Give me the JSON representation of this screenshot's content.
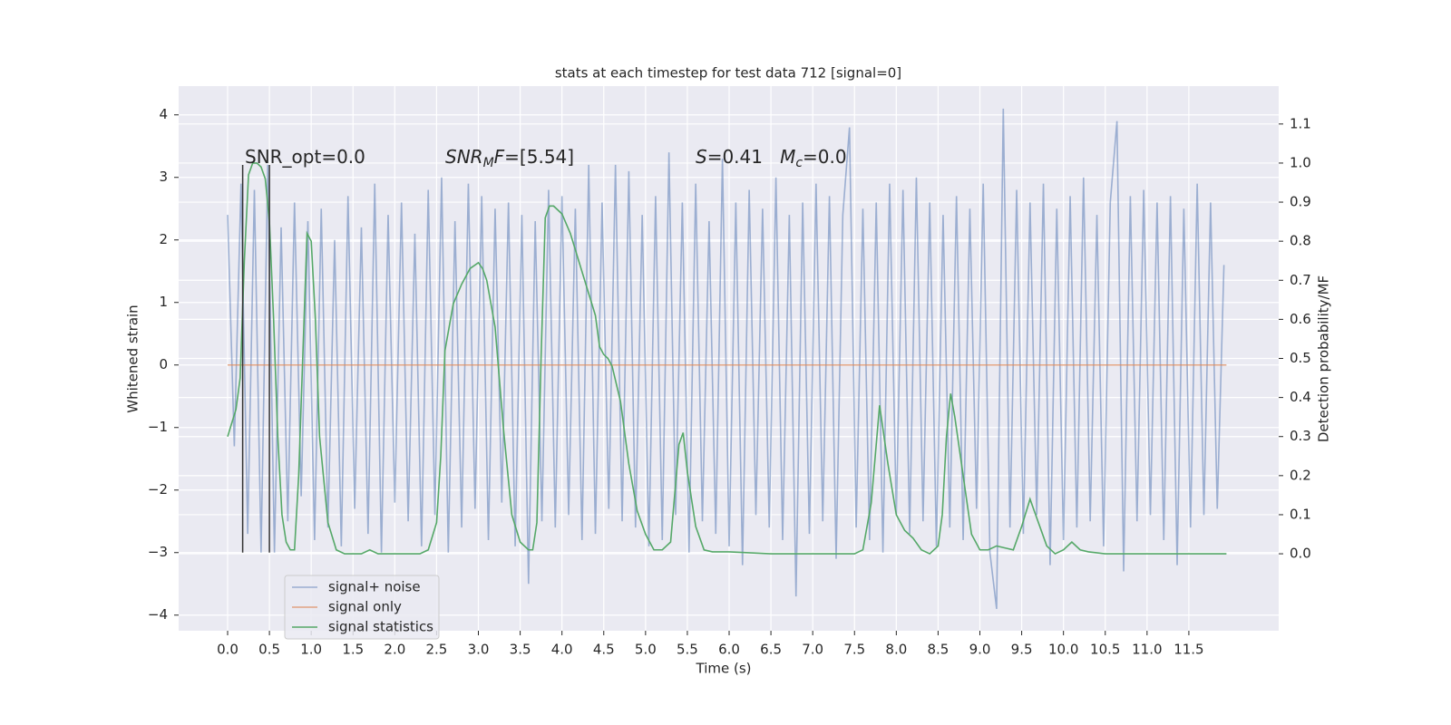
{
  "chart_data": {
    "type": "line",
    "title": "stats at each timestep for test data 712 [signal=0]",
    "xlabel": "Time (s)",
    "ylabel": "Whitened strain",
    "y2label": "Detection probability/MF",
    "xlim": [
      -0.586,
      12.575
    ],
    "ylim": [
      -4.25,
      4.46
    ],
    "y2lim": [
      -0.197,
      1.197
    ],
    "grid": true,
    "xticks": [
      {
        "value": 0,
        "label": "0.0"
      },
      0.5,
      {
        "value": 1,
        "label": "1.0"
      },
      1.5,
      {
        "value": 2,
        "label": "2.0"
      },
      2.5,
      {
        "value": 3,
        "label": "3.0"
      },
      3.5,
      {
        "value": 4,
        "label": "4.0"
      },
      4.5,
      {
        "value": 5,
        "label": "5.0"
      },
      5.5,
      {
        "value": 6,
        "label": "6.0"
      },
      6.5,
      {
        "value": 7,
        "label": "7.0"
      },
      7.5,
      {
        "value": 8,
        "label": "8.0"
      },
      8.5,
      {
        "value": 9,
        "label": "9.0"
      },
      9.5,
      {
        "value": 10,
        "label": "10.0"
      },
      10.5,
      {
        "value": 11,
        "label": "11.0"
      },
      11.5
    ],
    "yticks": [
      {
        "value": -4,
        "label": "−4"
      },
      {
        "value": -3,
        "label": "−3"
      },
      {
        "value": -2,
        "label": "−2"
      },
      {
        "value": -1,
        "label": "−1"
      },
      0,
      1,
      2,
      3,
      4
    ],
    "y2ticks": [
      {
        "value": 0,
        "label": "0.0"
      },
      0.1,
      0.2,
      0.3,
      0.4,
      0.5,
      0.6,
      0.7,
      0.8,
      0.9,
      {
        "value": 1,
        "label": "1.0"
      },
      1.1
    ],
    "series": [
      {
        "name": "signal+ noise",
        "color": "#4c72b0",
        "opacity": 0.5,
        "x": [
          0,
          0.08,
          0.16,
          0.24,
          0.32,
          0.4,
          0.48,
          0.56,
          0.64,
          0.72,
          0.8,
          0.88,
          0.96,
          1.04,
          1.12,
          1.2,
          1.28,
          1.36,
          1.44,
          1.52,
          1.6,
          1.68,
          1.76,
          1.84,
          1.92,
          2,
          2.08,
          2.16,
          2.24,
          2.32,
          2.4,
          2.48,
          2.56,
          2.64,
          2.72,
          2.8,
          2.88,
          2.96,
          3.04,
          3.12,
          3.2,
          3.28,
          3.36,
          3.44,
          3.52,
          3.6,
          3.68,
          3.76,
          3.84,
          3.92,
          4,
          4.08,
          4.16,
          4.24,
          4.32,
          4.4,
          4.48,
          4.56,
          4.64,
          4.72,
          4.8,
          4.88,
          4.96,
          5.04,
          5.12,
          5.2,
          5.28,
          5.36,
          5.44,
          5.52,
          5.6,
          5.68,
          5.76,
          5.84,
          5.92,
          6,
          6.08,
          6.16,
          6.24,
          6.32,
          6.4,
          6.48,
          6.56,
          6.64,
          6.72,
          6.8,
          6.88,
          6.96,
          7.04,
          7.12,
          7.2,
          7.28,
          7.36,
          7.44,
          7.52,
          7.6,
          7.68,
          7.76,
          7.84,
          7.92,
          8,
          8.08,
          8.16,
          8.24,
          8.32,
          8.4,
          8.48,
          8.56,
          8.64,
          8.72,
          8.8,
          8.88,
          8.96,
          9.04,
          9.12,
          9.2,
          9.28,
          9.36,
          9.44,
          9.52,
          9.6,
          9.68,
          9.76,
          9.84,
          9.92,
          10,
          10.08,
          10.16,
          10.24,
          10.32,
          10.4,
          10.48,
          10.56,
          10.64,
          10.72,
          10.8,
          10.88,
          10.96,
          11.04,
          11.12,
          11.2,
          11.28,
          11.36,
          11.44,
          11.52,
          11.6,
          11.68,
          11.76,
          11.84,
          11.92
        ],
        "values": [
          2.4,
          -1.3,
          2.9,
          -2.7,
          2.8,
          -3.0,
          3.2,
          -3.0,
          2.2,
          -2.5,
          2.6,
          -2.1,
          2.3,
          -2.8,
          2.5,
          -2.6,
          2.0,
          -2.9,
          2.7,
          -2.3,
          2.2,
          -2.7,
          2.9,
          -3.0,
          2.4,
          -2.2,
          2.6,
          -2.5,
          2.1,
          -2.9,
          2.8,
          -2.4,
          3.0,
          -3.0,
          2.3,
          -2.6,
          2.9,
          -2.3,
          2.7,
          -2.8,
          2.5,
          -2.2,
          2.6,
          -2.9,
          2.4,
          -3.5,
          2.3,
          -2.5,
          2.8,
          -2.6,
          2.7,
          -2.4,
          2.5,
          -2.8,
          3.2,
          -2.7,
          2.6,
          -2.3,
          3.2,
          -2.5,
          3.1,
          -2.6,
          2.4,
          -2.9,
          2.7,
          -2.8,
          3.4,
          -2.4,
          2.6,
          -3.0,
          2.9,
          -2.5,
          2.3,
          -2.7,
          3.3,
          -2.9,
          2.6,
          -3.2,
          2.8,
          -2.4,
          2.5,
          -2.6,
          3.0,
          -2.8,
          2.4,
          -3.7,
          2.6,
          -2.7,
          2.9,
          -2.5,
          2.7,
          -3.1,
          2.4,
          3.8,
          -2.6,
          2.5,
          -2.8,
          2.6,
          -3.0,
          2.9,
          -2.4,
          2.8,
          -2.7,
          3.0,
          -2.5,
          2.6,
          -2.9,
          2.4,
          -2.6,
          2.7,
          -2.8,
          2.5,
          -2.3,
          2.9,
          -3.0,
          -3.9,
          4.1,
          -2.6,
          2.8,
          -2.7,
          2.6,
          -2.4,
          2.9,
          -3.2,
          2.5,
          -2.8,
          2.7,
          -2.6,
          3.0,
          -2.5,
          2.4,
          -2.9,
          2.6,
          3.9,
          -3.3,
          2.7,
          -2.5,
          2.8,
          -2.4,
          2.6,
          -2.8,
          2.7,
          -3.2,
          2.5,
          -2.6,
          2.9,
          -2.4,
          2.6,
          -2.3,
          1.6
        ]
      },
      {
        "name": "signal only",
        "color": "#dd8452",
        "opacity": 0.7,
        "x": [
          0,
          11.95
        ],
        "values": [
          0,
          0
        ]
      },
      {
        "name": "signal statistics",
        "color": "#55a868",
        "axis": "y2",
        "x": [
          0,
          0.1,
          0.15,
          0.2,
          0.25,
          0.3,
          0.35,
          0.4,
          0.45,
          0.5,
          0.55,
          0.6,
          0.65,
          0.7,
          0.75,
          0.8,
          0.85,
          0.95,
          1.0,
          1.05,
          1.1,
          1.2,
          1.3,
          1.4,
          1.6,
          1.7,
          1.8,
          2.0,
          2.3,
          2.4,
          2.5,
          2.55,
          2.6,
          2.7,
          2.8,
          2.9,
          3.0,
          3.05,
          3.1,
          3.2,
          3.3,
          3.4,
          3.5,
          3.6,
          3.65,
          3.7,
          3.75,
          3.8,
          3.85,
          3.9,
          4.0,
          4.1,
          4.2,
          4.3,
          4.4,
          4.45,
          4.5,
          4.55,
          4.6,
          4.7,
          4.8,
          4.9,
          5.0,
          5.1,
          5.2,
          5.3,
          5.4,
          5.45,
          5.5,
          5.6,
          5.7,
          5.8,
          6.0,
          6.5,
          7.0,
          7.5,
          7.6,
          7.7,
          7.8,
          7.9,
          8.0,
          8.1,
          8.2,
          8.3,
          8.4,
          8.5,
          8.55,
          8.6,
          8.65,
          8.7,
          8.8,
          8.9,
          9.0,
          9.1,
          9.2,
          9.3,
          9.4,
          9.5,
          9.6,
          9.7,
          9.8,
          9.9,
          10.0,
          10.1,
          10.2,
          10.3,
          10.5,
          11.0,
          11.5,
          11.95
        ],
        "values": [
          0.3,
          0.37,
          0.45,
          0.75,
          0.97,
          1.0,
          1.0,
          0.99,
          0.96,
          0.85,
          0.6,
          0.3,
          0.1,
          0.03,
          0.01,
          0.01,
          0.2,
          0.82,
          0.8,
          0.6,
          0.3,
          0.08,
          0.01,
          0.0,
          0.0,
          0.01,
          0.0,
          0.0,
          0.0,
          0.01,
          0.08,
          0.25,
          0.52,
          0.64,
          0.69,
          0.73,
          0.745,
          0.73,
          0.7,
          0.58,
          0.32,
          0.1,
          0.03,
          0.01,
          0.01,
          0.08,
          0.5,
          0.86,
          0.89,
          0.89,
          0.87,
          0.82,
          0.75,
          0.68,
          0.61,
          0.53,
          0.51,
          0.5,
          0.48,
          0.39,
          0.23,
          0.11,
          0.05,
          0.01,
          0.01,
          0.03,
          0.28,
          0.31,
          0.21,
          0.07,
          0.01,
          0.005,
          0.005,
          0.0,
          0.0,
          0.0,
          0.01,
          0.13,
          0.38,
          0.23,
          0.1,
          0.06,
          0.04,
          0.01,
          0.0,
          0.02,
          0.1,
          0.3,
          0.41,
          0.35,
          0.2,
          0.05,
          0.01,
          0.01,
          0.02,
          0.015,
          0.01,
          0.07,
          0.14,
          0.08,
          0.02,
          0.0,
          0.01,
          0.03,
          0.01,
          0.005,
          0.0,
          0.0,
          0.0,
          0.0
        ]
      }
    ],
    "vlines": [
      {
        "x": 0.18,
        "y": [
          -3,
          3.2
        ],
        "color": "#333333"
      },
      {
        "x": 0.5,
        "y": [
          -3,
          3.2
        ],
        "color": "#333333"
      }
    ],
    "annotations": [
      {
        "parts": [
          {
            "text": "SNR_opt=0.0"
          }
        ]
      },
      {
        "parts": [
          {
            "text": "SNR",
            "italic": true
          },
          {
            "text": "M",
            "italic": true,
            "sub": true
          },
          {
            "text": "F",
            "italic": true
          },
          {
            "text": "=[5.54]"
          }
        ]
      },
      {
        "parts": [
          {
            "text": "S",
            "italic": true
          },
          {
            "text": "=0.41   "
          },
          {
            "text": "M",
            "italic": true
          },
          {
            "text": "c",
            "italic": true,
            "sub": true
          },
          {
            "text": "=0.0"
          }
        ]
      }
    ]
  }
}
